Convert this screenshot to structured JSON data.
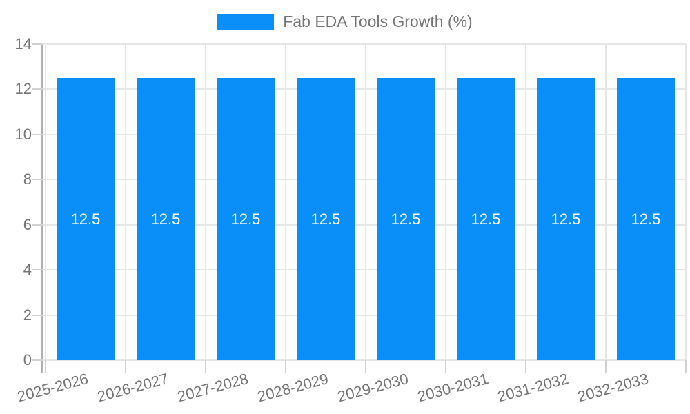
{
  "legend": {
    "label": "Fab EDA Tools Growth (%)"
  },
  "colors": {
    "bar": "#0a8ff8",
    "grid": "#e6e6e6",
    "axis": "#b0b0b0",
    "tick_text": "#757575",
    "value_text": "#ffffff",
    "background": "#ffffff"
  },
  "chart_data": {
    "type": "bar",
    "title": "Fab EDA Tools Growth (%)",
    "categories": [
      "2025-2026",
      "2026-2027",
      "2027-2028",
      "2028-2029",
      "2029-2030",
      "2030-2031",
      "2031-2032",
      "2032-2033"
    ],
    "values": [
      12.5,
      12.5,
      12.5,
      12.5,
      12.5,
      12.5,
      12.5,
      12.5
    ],
    "value_labels": [
      "12.5",
      "12.5",
      "12.5",
      "12.5",
      "12.5",
      "12.5",
      "12.5",
      "12.5"
    ],
    "xlabel": "",
    "ylabel": "",
    "ylim": [
      0,
      14
    ],
    "yticks": [
      0,
      2,
      4,
      6,
      8,
      10,
      12,
      14
    ],
    "grid": true,
    "legend_position": "top",
    "x_label_rotation_deg": -15
  }
}
